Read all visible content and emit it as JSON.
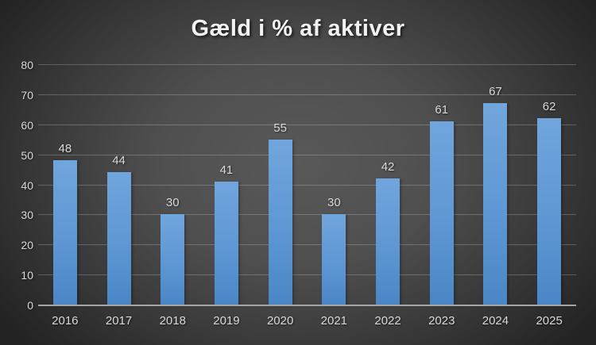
{
  "title": "Gæld i % af aktiver",
  "colors": {
    "background_center": "#595959",
    "background_edge": "#232323",
    "bar_gradient_top": "#71a5dd",
    "bar_gradient_bottom": "#4a86c6",
    "gridline": "rgba(255,255,255,0.22)",
    "axis_line": "#a6a6a6",
    "label_text": "#d9d9d9",
    "title_text": "#f2f2f2"
  },
  "chart_data": {
    "type": "bar",
    "title": "Gæld i % af aktiver",
    "categories": [
      "2016",
      "2017",
      "2018",
      "2019",
      "2020",
      "2021",
      "2022",
      "2023",
      "2024",
      "2025"
    ],
    "values": [
      48,
      44,
      30,
      41,
      55,
      30,
      42,
      61,
      67,
      62
    ],
    "data_labels": [
      48,
      44,
      30,
      41,
      55,
      30,
      42,
      61,
      67,
      62
    ],
    "xlabel": "",
    "ylabel": "",
    "ylim": [
      0,
      80
    ],
    "ytick_step": 10,
    "ytick_labels": [
      "0",
      "10",
      "20",
      "30",
      "40",
      "50",
      "60",
      "70",
      "80"
    ],
    "grid": true,
    "legend": false,
    "series_name": "Gæld i % af aktiver"
  }
}
